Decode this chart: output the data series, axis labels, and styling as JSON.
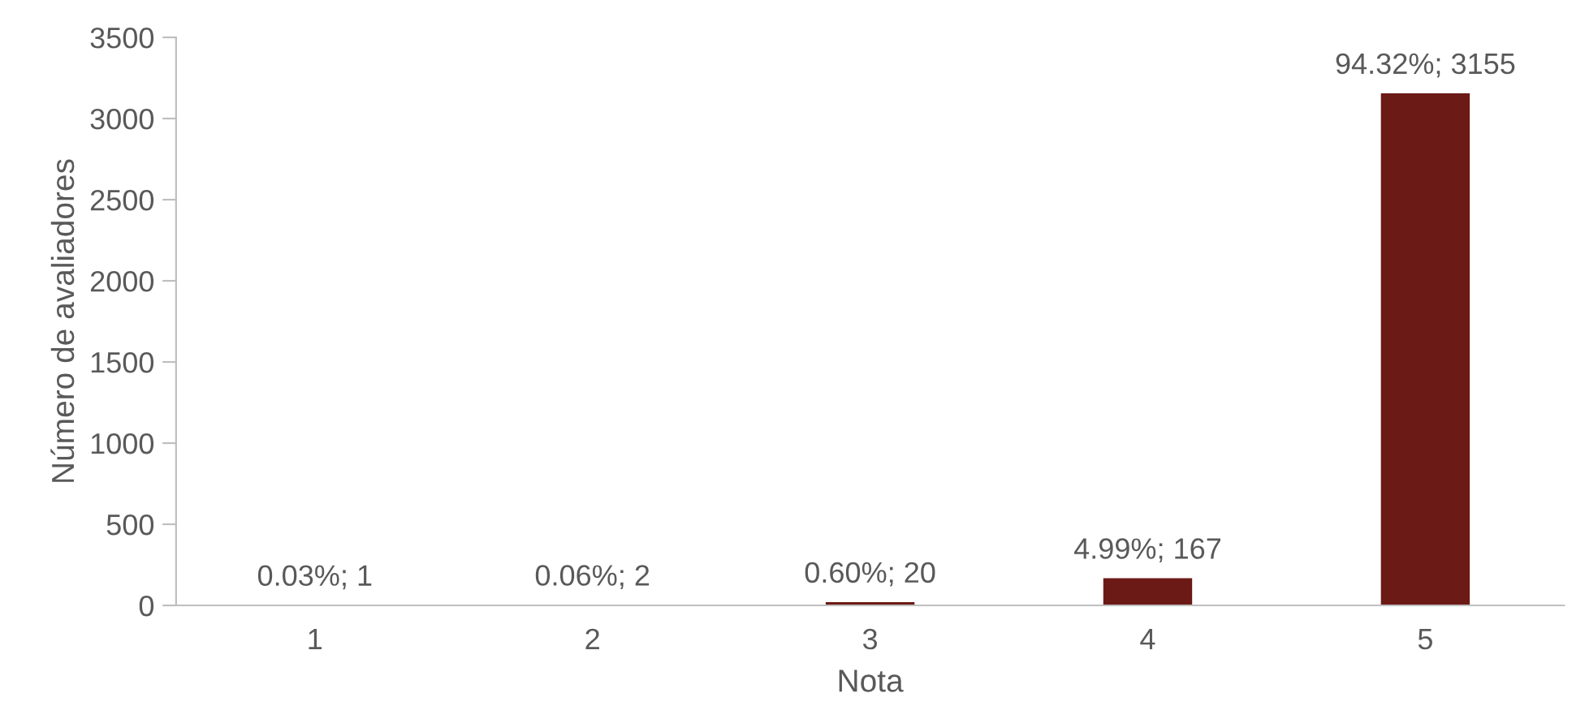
{
  "chart_data": {
    "type": "bar",
    "xlabel": "Nota",
    "ylabel": "Número de avaliadores",
    "categories": [
      "1",
      "2",
      "3",
      "4",
      "5"
    ],
    "values": [
      1,
      2,
      20,
      167,
      3155
    ],
    "value_labels": [
      "0.03%; 1",
      "0.06%; 2",
      "0.60%; 20",
      "4.99%; 167",
      "94.32%; 3155"
    ],
    "color": "#6b1a16",
    "ylim": [
      0,
      3500
    ],
    "yticks": [
      0,
      500,
      1000,
      1500,
      2000,
      2500,
      3000,
      3500
    ],
    "grid": false,
    "legend": false
  }
}
